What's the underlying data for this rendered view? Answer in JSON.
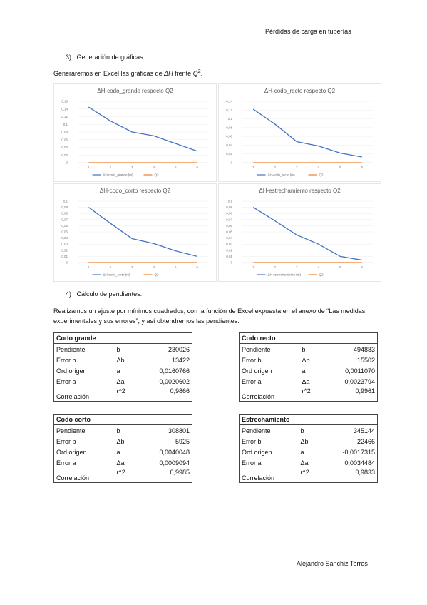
{
  "header": "Pérdidas de carga en tuberías",
  "section3": {
    "number": "3)",
    "title": "Generación de gráficas:"
  },
  "intro": {
    "text": "Generaremos en Excel las gráficas de",
    "var1": "ΔH",
    "mid": "frente",
    "var2": "Q",
    "exp": "2",
    "end": "."
  },
  "charts": [
    {
      "type": "line",
      "title": "ΔH-codo_grande respecto Q2",
      "categories": [
        "1",
        "2",
        "3",
        "4",
        "5",
        "6"
      ],
      "series": [
        {
          "name": "ΔH-codo_grande (m)",
          "color": "#4472c4",
          "values": [
            0.145,
            0.109,
            0.08,
            0.07,
            0.05,
            0.03
          ]
        },
        {
          "name": "Q2",
          "color": "#ed7d31",
          "values": [
            0,
            0,
            0,
            0,
            0,
            0
          ]
        }
      ],
      "ylim": [
        0,
        0.16
      ],
      "yticks": [
        0,
        {
          "value": 0.02,
          "label": "0,02"
        },
        {
          "value": 0.04,
          "label": "0,04"
        },
        {
          "value": 0.06,
          "label": "0,06"
        },
        {
          "value": 0.08,
          "label": "0,08"
        },
        {
          "value": 0.1,
          "label": "0,1"
        },
        {
          "value": 0.12,
          "label": "0,12"
        },
        {
          "value": 0.14,
          "label": "0,14"
        },
        {
          "value": 0.16,
          "label": "0,16"
        }
      ]
    },
    {
      "type": "line",
      "title": "ΔH-codo_recto respecto Q2",
      "categories": [
        "1",
        "2",
        "3",
        "4",
        "5",
        "6"
      ],
      "series": [
        {
          "name": "ΔH-codo_recto (m)",
          "color": "#4472c4",
          "values": [
            0.122,
            0.088,
            0.048,
            0.038,
            0.022,
            0.013
          ]
        },
        {
          "name": "Q2",
          "color": "#ed7d31",
          "values": [
            0,
            0,
            0,
            0,
            0,
            0
          ]
        }
      ],
      "ylim": [
        0,
        0.14
      ],
      "yticks": [
        0,
        {
          "value": 0.02,
          "label": "0,02"
        },
        {
          "value": 0.04,
          "label": "0,04"
        },
        {
          "value": 0.06,
          "label": "0,06"
        },
        {
          "value": 0.08,
          "label": "0,08"
        },
        {
          "value": 0.1,
          "label": "0,1"
        },
        {
          "value": 0.12,
          "label": "0,12"
        },
        {
          "value": 0.14,
          "label": "0,14"
        }
      ]
    },
    {
      "type": "line",
      "title": "ΔH-codo_corto respecto Q2",
      "categories": [
        "1",
        "2",
        "3",
        "4",
        "5",
        "6"
      ],
      "series": [
        {
          "name": "ΔH-codo_corto (m)",
          "color": "#4472c4",
          "values": [
            0.09,
            0.064,
            0.039,
            0.031,
            0.019,
            0.01
          ]
        },
        {
          "name": "Q2",
          "color": "#ed7d31",
          "values": [
            0,
            0,
            0,
            0,
            0,
            0
          ]
        }
      ],
      "ylim": [
        0,
        0.1
      ],
      "yticks": [
        0,
        {
          "value": 0.01,
          "label": "0,01"
        },
        {
          "value": 0.02,
          "label": "0,02"
        },
        {
          "value": 0.03,
          "label": "0,03"
        },
        {
          "value": 0.04,
          "label": "0,04"
        },
        {
          "value": 0.05,
          "label": "0,05"
        },
        {
          "value": 0.06,
          "label": "0,06"
        },
        {
          "value": 0.07,
          "label": "0,07"
        },
        {
          "value": 0.08,
          "label": "0,08"
        },
        {
          "value": 0.09,
          "label": "0,09"
        },
        {
          "value": 0.1,
          "label": "0,1"
        }
      ]
    },
    {
      "type": "line",
      "title": "ΔH-estrechamiento respecto Q2",
      "categories": [
        "1",
        "2",
        "3",
        "4",
        "5",
        "6"
      ],
      "series": [
        {
          "name": "ΔH-estrechamiento (m)",
          "color": "#4472c4",
          "values": [
            0.09,
            0.068,
            0.045,
            0.03,
            0.01,
            0.004
          ]
        },
        {
          "name": "Q2",
          "color": "#ed7d31",
          "values": [
            0,
            0,
            0,
            0,
            0,
            0
          ]
        }
      ],
      "ylim": [
        0,
        0.1
      ],
      "yticks": [
        0,
        {
          "value": 0.01,
          "label": "0,01"
        },
        {
          "value": 0.02,
          "label": "0,02"
        },
        {
          "value": 0.03,
          "label": "0,03"
        },
        {
          "value": 0.04,
          "label": "0,04"
        },
        {
          "value": 0.05,
          "label": "0,05"
        },
        {
          "value": 0.06,
          "label": "0,06"
        },
        {
          "value": 0.07,
          "label": "0,07"
        },
        {
          "value": 0.08,
          "label": "0,08"
        },
        {
          "value": 0.09,
          "label": "0,09"
        },
        {
          "value": 0.1,
          "label": "0,1"
        }
      ]
    }
  ],
  "section4": {
    "number": "4)",
    "title": "Cálculo de pendientes:"
  },
  "paragraph": "Realizamos un ajuste por mínimos cuadrados, con la función de Excel expuesta en el anexo de “Las medidas experimentales y sus errores”, y así obtendremos las pendientes.",
  "tables": [
    {
      "title": "Codo grande",
      "rows": [
        [
          "Pendiente",
          "b",
          "230026"
        ],
        [
          "Error b",
          "Δb",
          "13422"
        ],
        [
          "Ord origen",
          "a",
          "0,0160766"
        ],
        [
          "Error a",
          "Δa",
          "0,0020602"
        ],
        [
          "Correlación",
          "r^2",
          "0,9866"
        ]
      ]
    },
    {
      "title": "Codo recto",
      "rows": [
        [
          "Pendiente",
          "b",
          "494883"
        ],
        [
          "Error b",
          "Δb",
          "15502"
        ],
        [
          "Ord origen",
          "a",
          "0,0011070"
        ],
        [
          "Error a",
          "Δa",
          "0,0023794"
        ],
        [
          "Correlación",
          "r^2",
          "0,9961"
        ]
      ]
    },
    {
      "title": "Codo corto",
      "rows": [
        [
          "Pendiente",
          "b",
          "308801"
        ],
        [
          "Error b",
          "Δb",
          "5925"
        ],
        [
          "Ord origen",
          "a",
          "0,0040048"
        ],
        [
          "Error a",
          "Δa",
          "0,0009094"
        ],
        [
          "Correlación",
          "r^2",
          "0,9985"
        ]
      ]
    },
    {
      "title": "Estrechamiento",
      "rows": [
        [
          "Pendiente",
          "b",
          "345144"
        ],
        [
          "Error b",
          "Δb",
          "22466"
        ],
        [
          "Ord origen",
          "a",
          "-0,0017315"
        ],
        [
          "Error a",
          "Δa",
          "0,0034484"
        ],
        [
          "Correlación",
          "r^2",
          "0,9833"
        ]
      ]
    }
  ],
  "footer": "Alejandro Sanchiz Torres"
}
